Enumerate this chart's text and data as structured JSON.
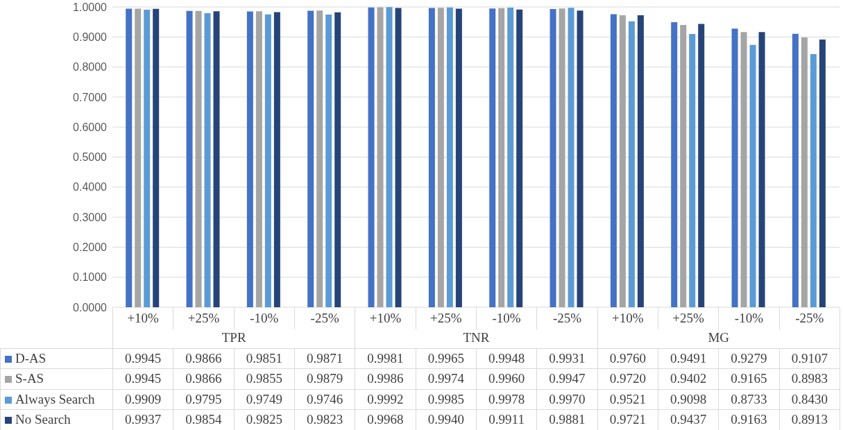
{
  "chart_data": {
    "type": "bar",
    "categories": [
      "+10%",
      "+25%",
      "-10%",
      "-25%",
      "+10%",
      "+25%",
      "-10%",
      "-25%",
      "+10%",
      "+25%",
      "-10%",
      "-25%"
    ],
    "annotations": [
      "TPR",
      "TNR",
      "MG"
    ],
    "series": [
      {
        "name": "D-AS",
        "color": "#4472c4",
        "values": [
          0.9945,
          0.9866,
          0.9851,
          0.9871,
          0.9981,
          0.9965,
          0.9948,
          0.9931,
          0.976,
          0.9491,
          0.9279,
          0.9107
        ],
        "value_labels": [
          "0.9945",
          "0.9866",
          "0.9851",
          "0.9871",
          "0.9981",
          "0.9965",
          "0.9948",
          "0.9931",
          "0.9760",
          "0.9491",
          "0.9279",
          "0.9107"
        ]
      },
      {
        "name": "S-AS",
        "color": "#a5a5a5",
        "values": [
          0.9945,
          0.9866,
          0.9855,
          0.9879,
          0.9986,
          0.9974,
          0.996,
          0.9947,
          0.972,
          0.9402,
          0.9165,
          0.8983
        ],
        "value_labels": [
          "0.9945",
          "0.9866",
          "0.9855",
          "0.9879",
          "0.9986",
          "0.9974",
          "0.9960",
          "0.9947",
          "0.9720",
          "0.9402",
          "0.9165",
          "0.8983"
        ]
      },
      {
        "name": "Always Search",
        "color": "#5b9bd5",
        "values": [
          0.9909,
          0.9795,
          0.9749,
          0.9746,
          0.9992,
          0.9985,
          0.9978,
          0.997,
          0.9521,
          0.9098,
          0.8733,
          0.843
        ],
        "value_labels": [
          "0.9909",
          "0.9795",
          "0.9749",
          "0.9746",
          "0.9992",
          "0.9985",
          "0.9978",
          "0.9970",
          "0.9521",
          "0.9098",
          "0.8733",
          "0.8430"
        ]
      },
      {
        "name": "No Search",
        "color": "#264478",
        "values": [
          0.9937,
          0.9854,
          0.9825,
          0.9823,
          0.9968,
          0.994,
          0.9911,
          0.9881,
          0.9721,
          0.9437,
          0.9163,
          0.8913
        ],
        "value_labels": [
          "0.9937",
          "0.9854",
          "0.9825",
          "0.9823",
          "0.9968",
          "0.9940",
          "0.9911",
          "0.9881",
          "0.9721",
          "0.9437",
          "0.9163",
          "0.8913"
        ]
      }
    ],
    "ylim": [
      0,
      1
    ],
    "yticks": [
      {
        "value": 0,
        "label": "0.0000"
      },
      {
        "value": 0.1,
        "label": "0.1000"
      },
      {
        "value": 0.2,
        "label": "0.2000"
      },
      {
        "value": 0.3,
        "label": "0.3000"
      },
      {
        "value": 0.4,
        "label": "0.4000"
      },
      {
        "value": 0.5,
        "label": "0.5000"
      },
      {
        "value": 0.6,
        "label": "0.6000"
      },
      {
        "value": 0.7,
        "label": "0.7000"
      },
      {
        "value": 0.8,
        "label": "0.8000"
      },
      {
        "value": 0.9,
        "label": "0.9000"
      },
      {
        "value": 1,
        "label": "1.0000"
      }
    ],
    "grid": "y",
    "legend": "bottom left"
  }
}
